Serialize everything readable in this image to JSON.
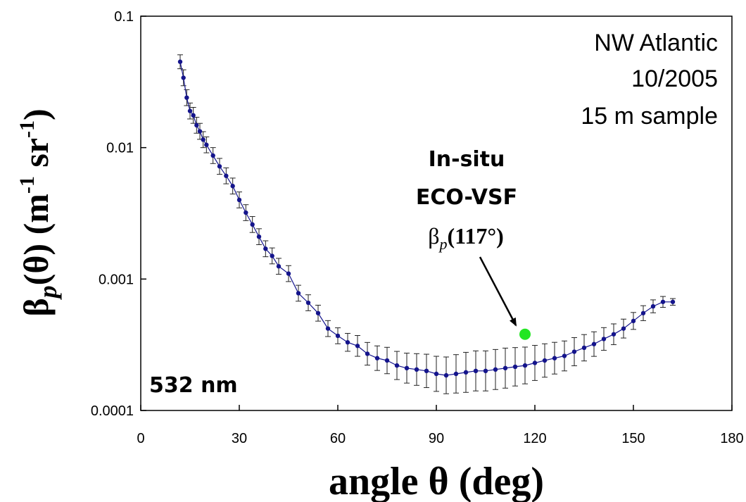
{
  "chart_data": {
    "type": "scatter",
    "x_ticks": [
      "0",
      "30",
      "60",
      "90",
      "120",
      "150",
      "180"
    ],
    "y_ticks": [
      "0.0001",
      "0.001",
      "0.01",
      "0.1"
    ],
    "xlim": [
      0,
      180
    ],
    "ylim": [
      0.0001,
      0.1
    ],
    "y_scale": "log",
    "grid": false,
    "xlabel": {
      "main": "angle θ (deg)"
    },
    "ylabel": {
      "beta": "β",
      "p": "p",
      "theta": "(θ) (m",
      "exp1": "-1",
      "sr": " sr",
      "exp2": "-1",
      "close": ")"
    },
    "annotations": {
      "location": [
        "NW Atlantic",
        "10/2005",
        "15 m sample"
      ],
      "callout": [
        "In-situ",
        "ECO-VSF"
      ],
      "callout_beta": {
        "beta": "β",
        "p": "p",
        "rest": "(117°)"
      },
      "wavelength": "532 nm"
    },
    "colors": {
      "series": "#14148c",
      "highlight": "#22e622",
      "errorbar": "#222222"
    },
    "series": [
      {
        "x": [
          12,
          13,
          14,
          15,
          16,
          17,
          18,
          19,
          20,
          22,
          24,
          26,
          28,
          30,
          32,
          34,
          36,
          38,
          40,
          42,
          45,
          48,
          51,
          54,
          57,
          60,
          63,
          66,
          69,
          72,
          75,
          78,
          81,
          84,
          87,
          90,
          93,
          96,
          99,
          102,
          105,
          108,
          111,
          114,
          117,
          120,
          123,
          126,
          129,
          132,
          135,
          138,
          141,
          144,
          147,
          150,
          153,
          156,
          159,
          162
        ],
        "y": [
          0.045,
          0.034,
          0.024,
          0.019,
          0.0176,
          0.0148,
          0.0133,
          0.0115,
          0.0105,
          0.0087,
          0.0072,
          0.0061,
          0.0051,
          0.004,
          0.0032,
          0.0026,
          0.0021,
          0.0017,
          0.0015,
          0.00125,
          0.0011,
          0.00078,
          0.00066,
          0.00055,
          0.00042,
          0.00037,
          0.00033,
          0.00031,
          0.00027,
          0.00025,
          0.00024,
          0.00022,
          0.00021,
          0.000205,
          0.0002,
          0.00019,
          0.000185,
          0.00019,
          0.000195,
          0.0002,
          0.0002,
          0.000205,
          0.00021,
          0.000215,
          0.00022,
          0.00023,
          0.00024,
          0.00025,
          0.00026,
          0.00028,
          0.0003,
          0.00032,
          0.00035,
          0.00038,
          0.00042,
          0.00048,
          0.00055,
          0.00062,
          0.00067,
          0.00067
        ],
        "error_factor": [
          1.13,
          1.15,
          1.15,
          1.15,
          1.15,
          1.15,
          1.15,
          1.15,
          1.15,
          1.15,
          1.15,
          1.15,
          1.15,
          1.15,
          1.15,
          1.15,
          1.15,
          1.15,
          1.15,
          1.15,
          1.15,
          1.15,
          1.15,
          1.15,
          1.15,
          1.15,
          1.17,
          1.2,
          1.22,
          1.24,
          1.26,
          1.28,
          1.3,
          1.32,
          1.34,
          1.36,
          1.38,
          1.4,
          1.42,
          1.42,
          1.42,
          1.42,
          1.42,
          1.4,
          1.38,
          1.36,
          1.34,
          1.32,
          1.3,
          1.28,
          1.26,
          1.24,
          1.22,
          1.2,
          1.18,
          1.16,
          1.14,
          1.12,
          1.1,
          1.06
        ]
      }
    ],
    "highlight_point": {
      "x": 117,
      "y": 0.00038
    }
  }
}
